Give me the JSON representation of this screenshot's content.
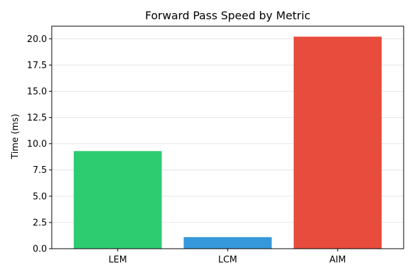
{
  "chart_data": {
    "type": "bar",
    "title": "Forward Pass Speed by Metric",
    "xlabel": "",
    "ylabel": "Time (ms)",
    "categories": [
      "LEM",
      "LCM",
      "AIM"
    ],
    "values": [
      9.3,
      1.1,
      20.2
    ],
    "colors": [
      "#2ecc71",
      "#3498db",
      "#e74c3c"
    ],
    "ylim": [
      0,
      21.2
    ],
    "yticks": [
      0.0,
      2.5,
      5.0,
      7.5,
      10.0,
      12.5,
      15.0,
      17.5,
      20.0
    ],
    "ytick_labels": [
      "0.0",
      "2.5",
      "5.0",
      "7.5",
      "10.0",
      "12.5",
      "15.0",
      "17.5",
      "20.0"
    ],
    "grid": "y",
    "legend": "none"
  }
}
